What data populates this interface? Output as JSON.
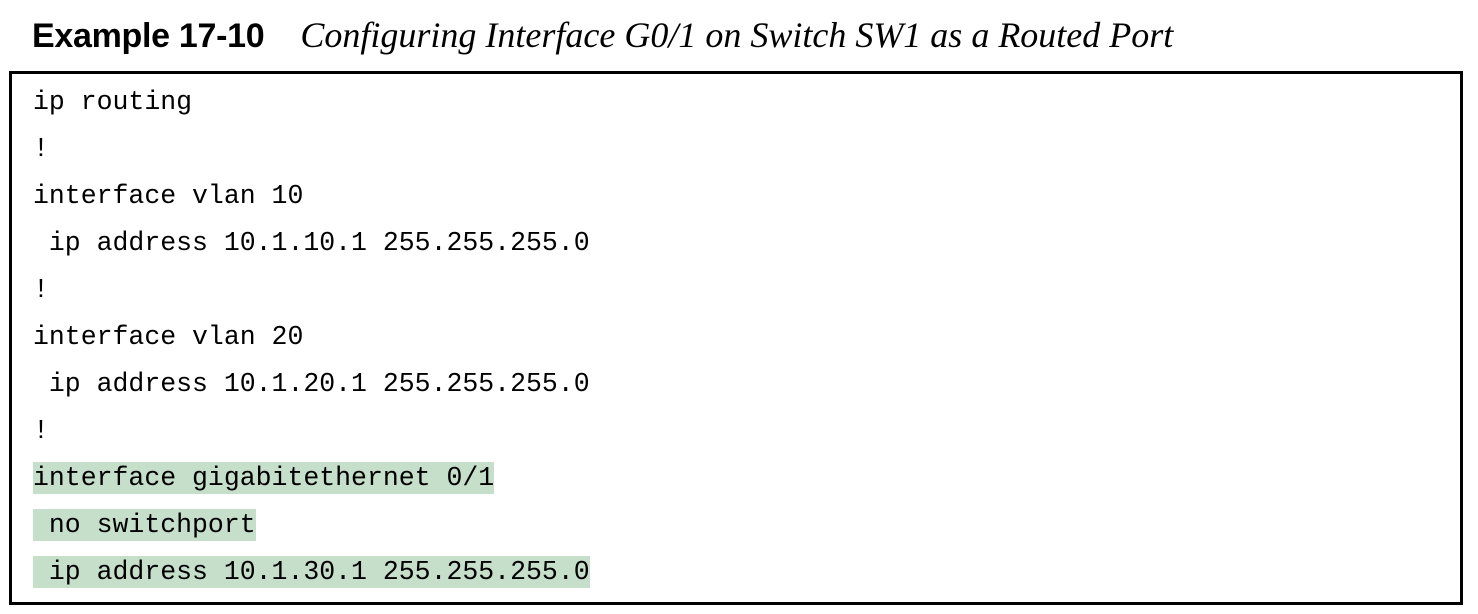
{
  "example": {
    "label": "Example 17-10",
    "title": "Configuring Interface G0/1 on Switch SW1 as a Routed Port"
  },
  "code_lines": [
    {
      "text": "ip routing",
      "highlighted": false
    },
    {
      "text": "!",
      "highlighted": false
    },
    {
      "text": "interface vlan 10",
      "highlighted": false
    },
    {
      "text": " ip address 10.1.10.1 255.255.255.0",
      "highlighted": false
    },
    {
      "text": "!",
      "highlighted": false
    },
    {
      "text": "interface vlan 20",
      "highlighted": false
    },
    {
      "text": " ip address 10.1.20.1 255.255.255.0",
      "highlighted": false
    },
    {
      "text": "!",
      "highlighted": false
    },
    {
      "text": "interface gigabitethernet 0/1",
      "highlighted": true
    },
    {
      "text": " no switchport",
      "highlighted": true
    },
    {
      "text": " ip address 10.1.30.1 255.255.255.0",
      "highlighted": true
    }
  ],
  "colors": {
    "highlight": "#c5dfcb",
    "border": "#000000",
    "text": "#000000"
  }
}
